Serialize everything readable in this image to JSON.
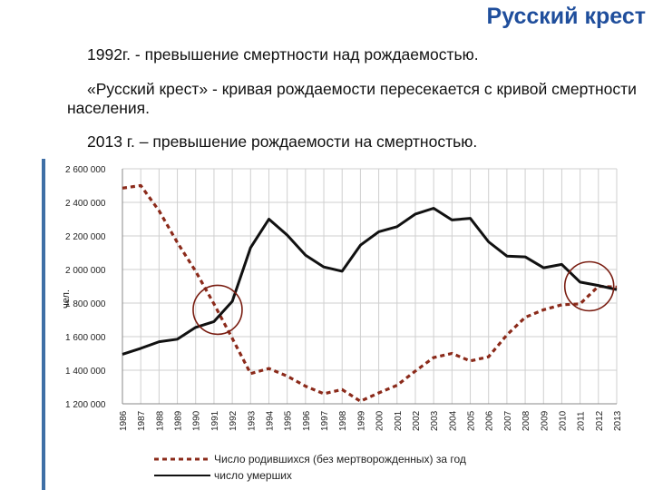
{
  "slide": {
    "title": "Русский крест",
    "bullets": [
      "1992г. - превышение смертности над рождаемостью.",
      "«Русский крест» - кривая рождаемости пересекается с кривой смертности населения.",
      "2013 г. – превышение рождаемости на смертностью."
    ]
  },
  "chart_data": {
    "type": "line",
    "ylabel": "чел.",
    "ylim": [
      1200000,
      2600000
    ],
    "yticks": [
      1200000,
      1400000,
      1600000,
      1800000,
      2000000,
      2200000,
      2400000,
      2600000
    ],
    "ytick_labels": [
      "1 200 000",
      "1 400 000",
      "1 600 000",
      "1 800 000",
      "2 000 000",
      "2 200 000",
      "2 400 000",
      "2 600 000"
    ],
    "categories": [
      "1986",
      "1987",
      "1988",
      "1989",
      "1990",
      "1991",
      "1992",
      "1993",
      "1994",
      "1995",
      "1996",
      "1997",
      "1998",
      "1999",
      "2000",
      "2001",
      "2002",
      "2003",
      "2004",
      "2005",
      "2006",
      "2007",
      "2008",
      "2009",
      "2010",
      "2011",
      "2012",
      "2013"
    ],
    "grid": true,
    "legend_position": "bottom",
    "series": [
      {
        "name": "Число родившихся (без мертворожденных) за год",
        "style": "dashed",
        "color": "#8b2a1a",
        "values": [
          2485000,
          2500000,
          2350000,
          2160000,
          1990000,
          1795000,
          1590000,
          1380000,
          1410000,
          1365000,
          1305000,
          1260000,
          1285000,
          1215000,
          1265000,
          1310000,
          1395000,
          1475000,
          1500000,
          1455000,
          1480000,
          1610000,
          1715000,
          1760000,
          1790000,
          1795000,
          1900000,
          1895000
        ]
      },
      {
        "name": "число умерших",
        "style": "solid",
        "color": "#111111",
        "values": [
          1495000,
          1530000,
          1570000,
          1585000,
          1655000,
          1690000,
          1810000,
          2130000,
          2300000,
          2205000,
          2085000,
          2015000,
          1990000,
          2145000,
          2225000,
          2255000,
          2330000,
          2365000,
          2295000,
          2305000,
          2165000,
          2080000,
          2075000,
          2010000,
          2030000,
          1925000,
          1905000,
          1880000
        ]
      }
    ],
    "annotations": [
      {
        "type": "circle",
        "label": "1991–1992 crossing"
      },
      {
        "type": "circle",
        "label": "2012–2013 crossing"
      }
    ]
  }
}
